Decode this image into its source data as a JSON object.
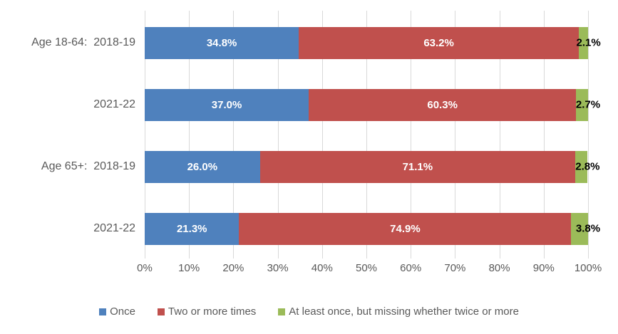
{
  "chart_data": {
    "type": "bar",
    "orientation": "horizontal",
    "stacked": true,
    "title": "",
    "xlabel": "",
    "ylabel": "",
    "xlim": [
      0,
      100
    ],
    "grid": true,
    "legend_position": "bottom",
    "categories": [
      "Age 18-64:  2018-19",
      "2021-22",
      "Age 65+:  2018-19",
      "2021-22"
    ],
    "series": [
      {
        "id": "once",
        "name": "Once",
        "color": "#4F81BD",
        "values": [
          34.8,
          37.0,
          26.0,
          21.3
        ],
        "labels": [
          "34.8%",
          "37.0%",
          "26.0%",
          "21.3%"
        ],
        "label_style": "inside-white"
      },
      {
        "id": "two-or-more-times",
        "name": "Two or more times",
        "color": "#C0504D",
        "values": [
          63.2,
          60.3,
          71.1,
          74.9
        ],
        "labels": [
          "63.2%",
          "60.3%",
          "71.1%",
          "74.9%"
        ],
        "label_style": "inside-white"
      },
      {
        "id": "at-least-once-missing",
        "name": "At least once, but missing whether twice or more",
        "color": "#9BBB59",
        "values": [
          2.1,
          2.7,
          2.8,
          3.8
        ],
        "labels": [
          "2.1%",
          "2.7%",
          "2.8%",
          "3.8%"
        ],
        "label_style": "outside-black"
      }
    ],
    "x_ticks": [
      "0%",
      "10%",
      "20%",
      "30%",
      "40%",
      "50%",
      "60%",
      "70%",
      "80%",
      "90%",
      "100%"
    ]
  },
  "colors": {
    "background": "#FFFFFF",
    "gridline": "#D9D9D9",
    "axis_text": "#595959",
    "data_label_light": "#FFFFFF",
    "data_label_dark": "#000000"
  }
}
